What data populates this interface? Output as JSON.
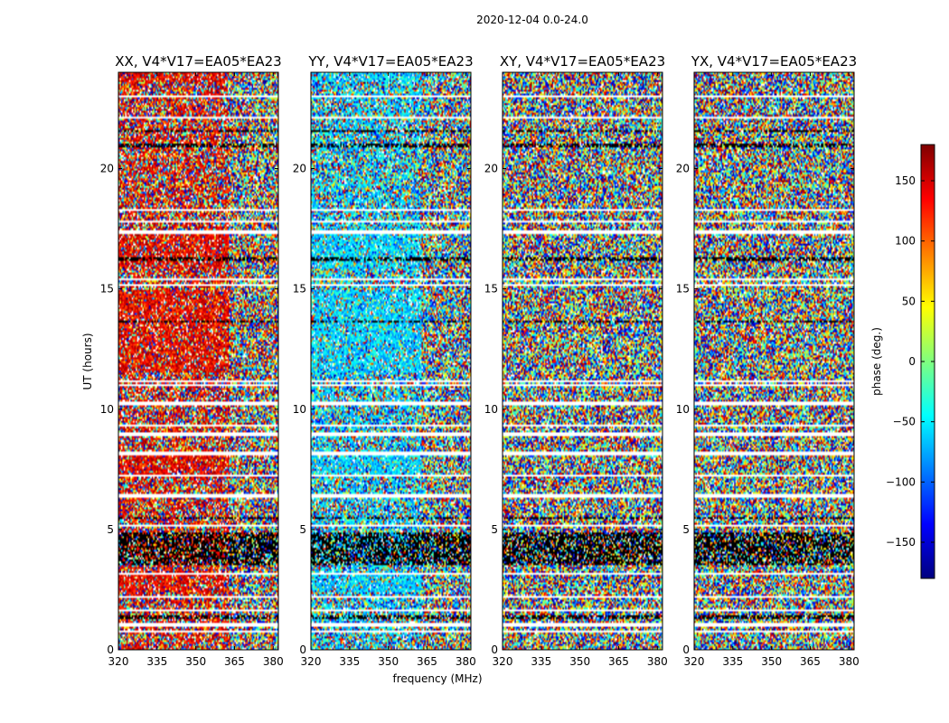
{
  "chart_data": {
    "type": "heatmap",
    "suptitle": "2020-12-04 0.0-24.0",
    "xlabel": "frequency (MHz)",
    "ylabel": "UT (hours)",
    "xlim": [
      320,
      382
    ],
    "ylim": [
      0,
      24
    ],
    "xticks": [
      320,
      335,
      350,
      365,
      380
    ],
    "yticks": [
      0,
      5,
      10,
      15,
      20
    ],
    "colorbar": {
      "label": "phase (deg.)",
      "range": [
        -180,
        180
      ],
      "ticks": [
        150,
        100,
        50,
        0,
        -50,
        -100,
        -150
      ],
      "tick_labels": [
        "150",
        "100",
        "50",
        "0",
        "−50",
        "−100",
        "−150"
      ],
      "colormap": "jet",
      "colormap_stops": [
        "#00007f",
        "#0000ff",
        "#007fff",
        "#00ffff",
        "#7fff7f",
        "#ffff00",
        "#ff7f00",
        "#ff0000",
        "#7f0000"
      ]
    },
    "panels": [
      {
        "title": "XX, V4*V17=EA05*EA23",
        "mean_phase_low_band": 140,
        "coherence_low_band": 0.75
      },
      {
        "title": "YY, V4*V17=EA05*EA23",
        "mean_phase_low_band": -60,
        "coherence_low_band": 0.75
      },
      {
        "title": "XY, V4*V17=EA05*EA23",
        "mean_phase_low_band": 0,
        "coherence_low_band": 0.0
      },
      {
        "title": "YX, V4*V17=EA05*EA23",
        "mean_phase_low_band": 0,
        "coherence_low_band": 0.0
      }
    ],
    "flagged_ut_bands": [
      [
        0.3,
        0.35
      ],
      [
        0.75,
        0.8
      ],
      [
        1.0,
        1.15
      ],
      [
        1.6,
        1.65
      ],
      [
        2.15,
        2.25
      ],
      [
        3.1,
        3.2
      ],
      [
        5.15,
        5.2
      ],
      [
        6.35,
        6.45
      ],
      [
        7.2,
        7.3
      ],
      [
        8.1,
        8.2
      ],
      [
        8.9,
        9.0
      ],
      [
        9.3,
        9.4
      ],
      [
        10.2,
        10.35
      ],
      [
        10.95,
        11.05
      ],
      [
        11.15,
        11.2
      ],
      [
        15.1,
        15.2
      ],
      [
        15.4,
        15.45
      ],
      [
        17.3,
        17.45
      ],
      [
        17.75,
        17.85
      ],
      [
        18.25,
        18.35
      ],
      [
        22.05,
        22.15
      ],
      [
        22.3,
        22.35
      ],
      [
        23.0,
        23.05
      ]
    ],
    "dark_ut_bands": [
      [
        1.3,
        1.4
      ],
      [
        3.5,
        4.9
      ],
      [
        5.4,
        5.5
      ],
      [
        13.6,
        13.7
      ],
      [
        16.2,
        16.3
      ],
      [
        20.9,
        21.0
      ],
      [
        21.5,
        21.6
      ]
    ]
  }
}
